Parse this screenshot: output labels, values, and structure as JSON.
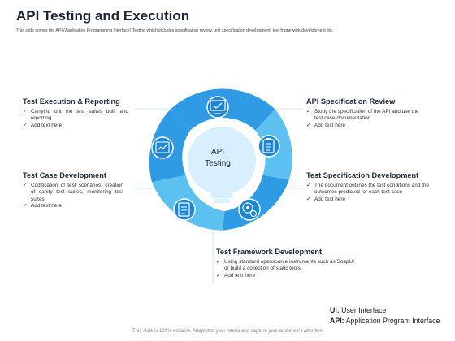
{
  "title": "API Testing and Execution",
  "subtitle": "This slide covers the API (Application Programming Interface) Testing which includes specification review, test specification development, test framework development etc.",
  "center": {
    "line1": "API",
    "line2": "Testing"
  },
  "blocks": {
    "execution": {
      "heading": "Test Execution & Reporting",
      "items": [
        "Carrying out the test suites built and reporting",
        "Add text here"
      ]
    },
    "case": {
      "heading": "Test Case Development",
      "items": [
        "Codification of test scenarios, creation of sanity test suites, monitoring test suites",
        "Add text here"
      ]
    },
    "framework": {
      "heading": "Test Framework Development",
      "items": [
        "Using standard opensource instruments such as SoapUI or build a collection of static tools",
        "Add text here"
      ]
    },
    "review": {
      "heading": "API Specification Review",
      "items": [
        "Study the specification of the API and use the test case documentation",
        "Add text here"
      ]
    },
    "specdev": {
      "heading": "Test Specification Development",
      "items": [
        "The document outlines the test conditions and the outcomes predicted for each test case",
        "Add text here"
      ]
    }
  },
  "legend": {
    "ui_abbr": "UI:",
    "ui_text": " User Interface",
    "api_abbr": "API:",
    "api_text": " Application Program Interface"
  },
  "footer": "This slide is 100% editable. Adapt it to your needs and capture your audience's attention",
  "colors": {
    "ring_dark": "#2e9be4",
    "ring_light": "#5cc0f0",
    "icon_circle": "#1e87d4",
    "center_fill": "#d7efff",
    "connector": "#c5dced",
    "check": "#333333"
  },
  "icons": [
    "monitor-check-icon",
    "clipboard-checklist-icon",
    "gears-clock-icon",
    "document-list-icon",
    "analytics-chart-icon"
  ]
}
